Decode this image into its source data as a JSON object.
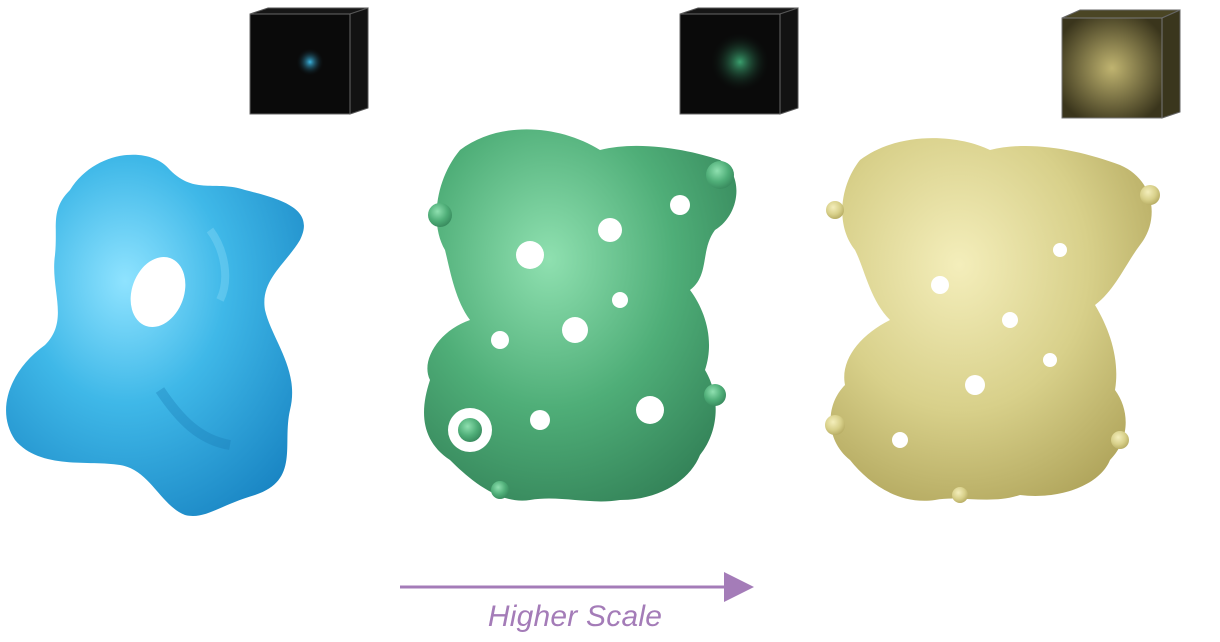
{
  "figure": {
    "caption": "Higher Scale",
    "colors": {
      "low_res": "#3fb8e8",
      "mid_res": "#4fae78",
      "high_res": "#d8d08a",
      "arrow": "#a47cb8",
      "cube_bg": "#0a0a0a"
    },
    "panels": [
      {
        "name": "low-resolution-map",
        "cube_glow": "#2a8db0"
      },
      {
        "name": "medium-resolution-map",
        "cube_glow": "#3a9a6a"
      },
      {
        "name": "high-resolution-map",
        "cube_glow": "#b0a860"
      }
    ]
  }
}
